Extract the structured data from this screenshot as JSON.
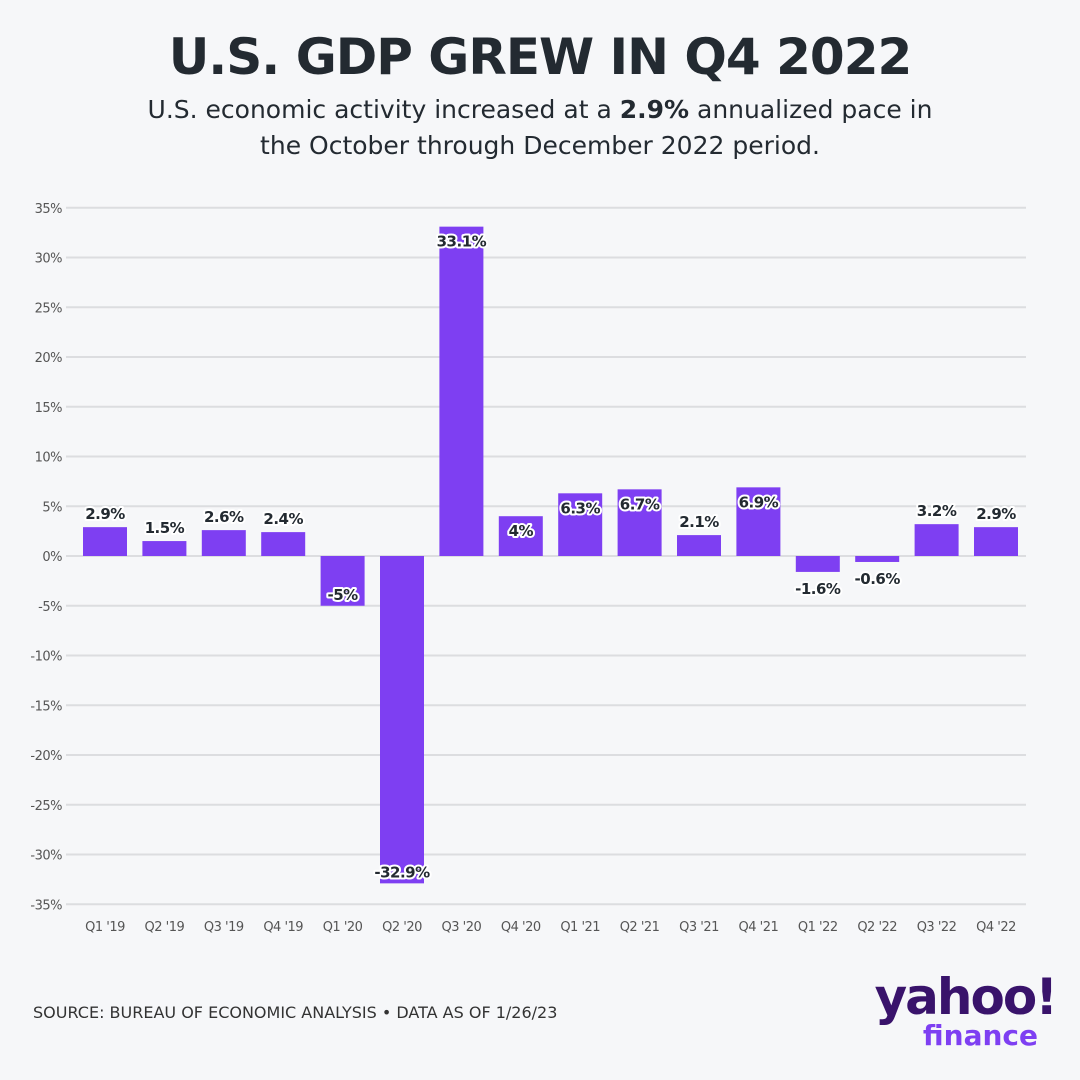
{
  "header": {
    "title": "U.S. GDP GREW IN Q4 2022",
    "subtitle_pre": "U.S. economic activity increased at a ",
    "subtitle_bold": "2.9%",
    "subtitle_post": " annualized pace in the October through December 2022 period."
  },
  "footer": {
    "source": "SOURCE: BUREAU OF ECONOMIC ANALYSIS • DATA AS OF 1/26/23",
    "logo_text": "yahoo!",
    "logo_subtext": "finance"
  },
  "colors": {
    "bar": "#7e3ff2",
    "grid": "#dcdde0",
    "text": "#232a31"
  },
  "chart_data": {
    "type": "bar",
    "title": "U.S. GDP GREW IN Q4 2022",
    "xlabel": "",
    "ylabel": "",
    "ylim": [
      -35,
      35
    ],
    "grid": true,
    "yticks": [
      35,
      30,
      25,
      20,
      15,
      10,
      5,
      0,
      -5,
      -10,
      -15,
      -20,
      -25,
      -30,
      -35
    ],
    "ytick_labels": [
      "35%",
      "30%",
      "25%",
      "20%",
      "15%",
      "10%",
      "5%",
      "0%",
      "-5%",
      "-10%",
      "-15%",
      "-20%",
      "-25%",
      "-30%",
      "-35%"
    ],
    "categories": [
      "Q1 '19",
      "Q2 '19",
      "Q3 '19",
      "Q4 '19",
      "Q1 '20",
      "Q2 '20",
      "Q3 '20",
      "Q4 '20",
      "Q1 '21",
      "Q2 '21",
      "Q3 '21",
      "Q4 '21",
      "Q1 '22",
      "Q2 '22",
      "Q3 '22",
      "Q4 '22"
    ],
    "values": [
      2.9,
      1.5,
      2.6,
      2.4,
      -5,
      -32.9,
      33.1,
      4,
      6.3,
      6.7,
      2.1,
      6.9,
      -1.6,
      -0.6,
      3.2,
      2.9
    ],
    "data_labels": [
      "2.9%",
      "1.5%",
      "2.6%",
      "2.4%",
      "-5%",
      "-32.9%",
      "33.1%",
      "4%",
      "6.3%",
      "6.7%",
      "2.1%",
      "6.9%",
      "-1.6%",
      "-0.6%",
      "3.2%",
      "2.9%"
    ]
  }
}
